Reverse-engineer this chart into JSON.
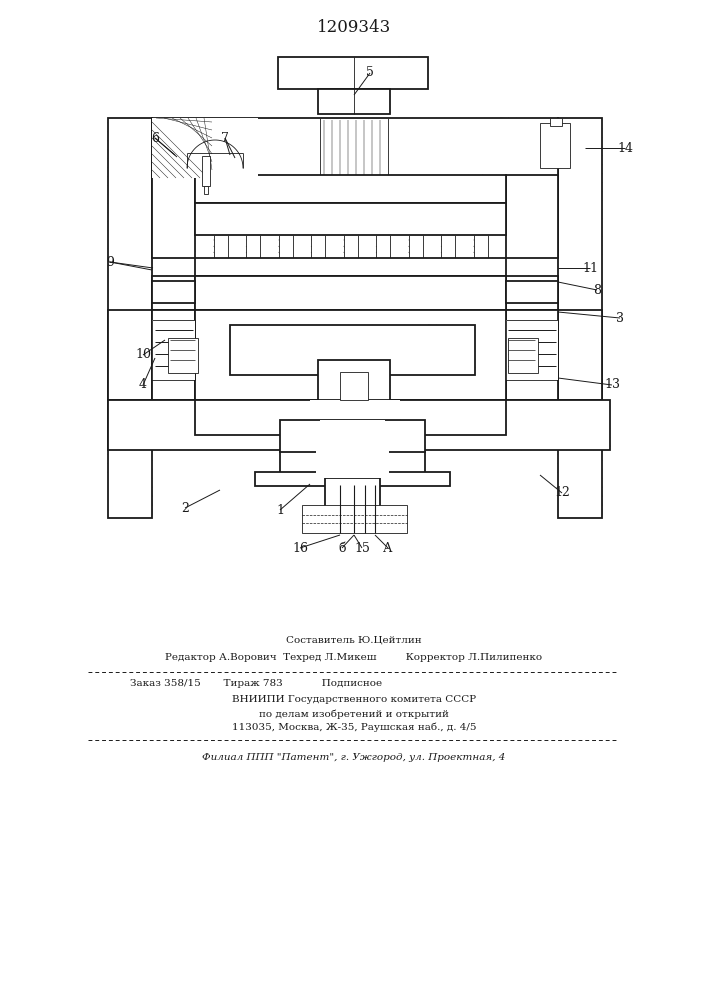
{
  "patent_number": "1209343",
  "bg_color": "#ffffff",
  "line_color": "#1a1a1a",
  "title_fontsize": 12,
  "footer_line1": "Составитель Ю.Цейтлин",
  "footer_line2": "Редактор А.Ворович  Техред Л.Микеш         Корректор Л.Пилипенко",
  "footer_line3": "Заказ 358/15       Тираж 783            Подписное",
  "footer_line4": "ВНИИПИ Государственного комитета СССР",
  "footer_line5": "по делам изобретений и открытий",
  "footer_line6": "113035, Москва, Ж-35, Раушская наб., д. 4/5",
  "footer_line7": "Филиал ППП \"Патент\", г. Ужгород, ул. Проектная, 4"
}
